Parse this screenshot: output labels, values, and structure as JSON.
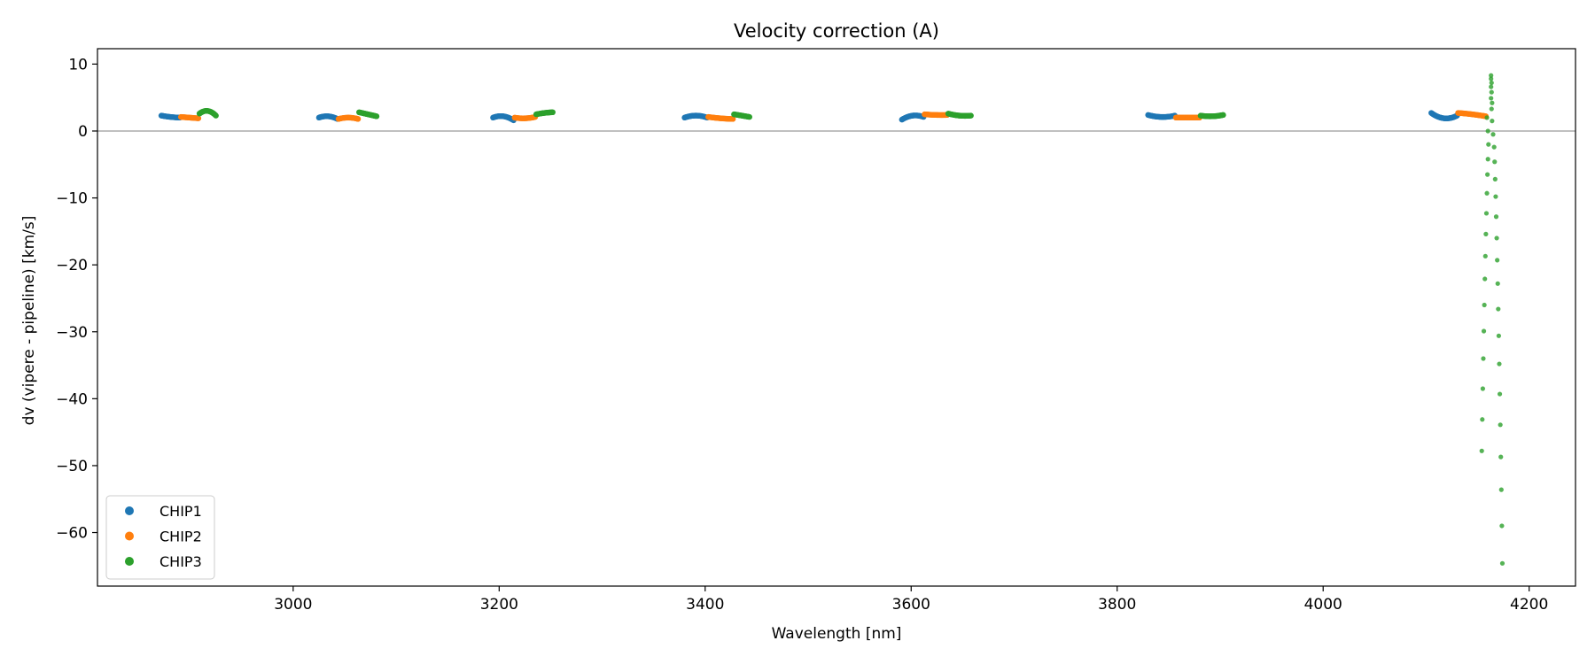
{
  "chart_data": {
    "type": "scatter",
    "title": "Velocity correction (A)",
    "xlabel": "Wavelength [nm]",
    "ylabel": "dv (vipere - pipeline) [km/s]",
    "xlim": [
      2810,
      4245
    ],
    "ylim": [
      -68,
      12.3
    ],
    "xticks": [
      3000,
      3200,
      3400,
      3600,
      3800,
      4000,
      4200
    ],
    "yticks": [
      10,
      0,
      -10,
      -20,
      -30,
      -40,
      -50,
      -60
    ],
    "grid": false,
    "zero_line": true,
    "legend_position": "lower-left",
    "series": [
      {
        "name": "CHIP1",
        "color": "#1f77b4",
        "segments": [
          {
            "x0": 2872,
            "x1": 2890,
            "y0": 2.3,
            "ymid": 2.1,
            "y1": 2.0
          },
          {
            "x0": 3025,
            "x1": 3043,
            "y0": 2.0,
            "ymid": 2.2,
            "y1": 1.8
          },
          {
            "x0": 3194,
            "x1": 3214,
            "y0": 2.0,
            "ymid": 2.2,
            "y1": 1.6
          },
          {
            "x0": 3380,
            "x1": 3402,
            "y0": 2.0,
            "ymid": 2.3,
            "y1": 2.0
          },
          {
            "x0": 3591,
            "x1": 3612,
            "y0": 1.7,
            "ymid": 2.3,
            "y1": 2.1
          },
          {
            "x0": 3830,
            "x1": 3856,
            "y0": 2.4,
            "ymid": 2.1,
            "y1": 2.3
          },
          {
            "x0": 4105,
            "x1": 4130,
            "y0": 2.7,
            "ymid": 1.9,
            "y1": 2.3
          }
        ],
        "vertical_scatter": []
      },
      {
        "name": "CHIP2",
        "color": "#ff7f0e",
        "segments": [
          {
            "x0": 2891,
            "x1": 2908,
            "y0": 2.1,
            "ymid": 2.0,
            "y1": 1.9
          },
          {
            "x0": 3044,
            "x1": 3063,
            "y0": 1.8,
            "ymid": 2.0,
            "y1": 1.8
          },
          {
            "x0": 3215,
            "x1": 3235,
            "y0": 2.0,
            "ymid": 1.9,
            "y1": 2.1
          },
          {
            "x0": 3403,
            "x1": 3427,
            "y0": 2.1,
            "ymid": 1.9,
            "y1": 1.8
          },
          {
            "x0": 3613,
            "x1": 3635,
            "y0": 2.5,
            "ymid": 2.4,
            "y1": 2.4
          },
          {
            "x0": 3857,
            "x1": 3880,
            "y0": 2.0,
            "ymid": 2.0,
            "y1": 2.0
          },
          {
            "x0": 4131,
            "x1": 4158,
            "y0": 2.7,
            "ymid": 2.5,
            "y1": 2.2
          }
        ],
        "vertical_scatter": []
      },
      {
        "name": "CHIP3",
        "color": "#2ca02c",
        "segments": [
          {
            "x0": 2909,
            "x1": 2925,
            "y0": 2.6,
            "ymid": 3.0,
            "y1": 2.3
          },
          {
            "x0": 3064,
            "x1": 3081,
            "y0": 2.8,
            "ymid": 2.5,
            "y1": 2.2
          },
          {
            "x0": 3236,
            "x1": 3252,
            "y0": 2.5,
            "ymid": 2.7,
            "y1": 2.8
          },
          {
            "x0": 3428,
            "x1": 3443,
            "y0": 2.5,
            "ymid": 2.3,
            "y1": 2.1
          },
          {
            "x0": 3636,
            "x1": 3658,
            "y0": 2.6,
            "ymid": 2.3,
            "y1": 2.3
          },
          {
            "x0": 3881,
            "x1": 3903,
            "y0": 2.3,
            "ymid": 2.2,
            "y1": 2.4
          }
        ],
        "vertical_scatter": [
          {
            "x": 4159,
            "y": 2.0
          },
          {
            "x": 4160,
            "y": 0.0
          },
          {
            "x": 4160.5,
            "y": -2.0
          },
          {
            "x": 4160,
            "y": -4.2
          },
          {
            "x": 4159.5,
            "y": -6.5
          },
          {
            "x": 4159,
            "y": -9.3
          },
          {
            "x": 4158.5,
            "y": -12.3
          },
          {
            "x": 4158,
            "y": -15.4
          },
          {
            "x": 4157.5,
            "y": -18.7
          },
          {
            "x": 4157,
            "y": -22.1
          },
          {
            "x": 4156.5,
            "y": -26.0
          },
          {
            "x": 4156,
            "y": -29.9
          },
          {
            "x": 4155.5,
            "y": -34.0
          },
          {
            "x": 4155,
            "y": -38.5
          },
          {
            "x": 4154.5,
            "y": -43.1
          },
          {
            "x": 4154,
            "y": -47.8
          },
          {
            "x": 4163,
            "y": 8.3
          },
          {
            "x": 4163,
            "y": 7.8
          },
          {
            "x": 4163.5,
            "y": 7.2
          },
          {
            "x": 4163,
            "y": 6.6
          },
          {
            "x": 4163.5,
            "y": 5.8
          },
          {
            "x": 4163,
            "y": 4.9
          },
          {
            "x": 4164,
            "y": 4.2
          },
          {
            "x": 4163.5,
            "y": 3.3
          },
          {
            "x": 4164,
            "y": 1.5
          },
          {
            "x": 4165,
            "y": -0.5
          },
          {
            "x": 4166,
            "y": -2.4
          },
          {
            "x": 4166.5,
            "y": -4.6
          },
          {
            "x": 4167,
            "y": -7.2
          },
          {
            "x": 4167.5,
            "y": -9.8
          },
          {
            "x": 4168,
            "y": -12.8
          },
          {
            "x": 4168.5,
            "y": -16.0
          },
          {
            "x": 4169,
            "y": -19.3
          },
          {
            "x": 4169.5,
            "y": -22.8
          },
          {
            "x": 4170,
            "y": -26.6
          },
          {
            "x": 4170.5,
            "y": -30.6
          },
          {
            "x": 4171,
            "y": -34.8
          },
          {
            "x": 4171.5,
            "y": -39.3
          },
          {
            "x": 4172,
            "y": -43.9
          },
          {
            "x": 4172.5,
            "y": -48.7
          },
          {
            "x": 4173,
            "y": -53.6
          },
          {
            "x": 4173.5,
            "y": -59.0
          },
          {
            "x": 4174,
            "y": -64.6
          }
        ]
      }
    ]
  }
}
